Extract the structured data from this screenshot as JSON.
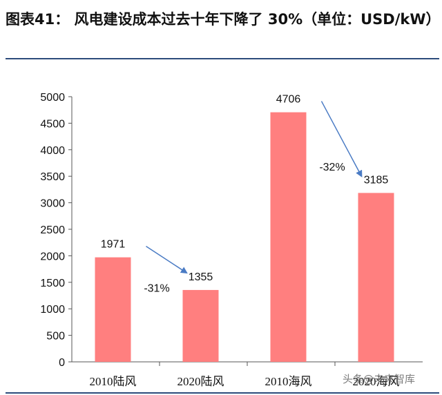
{
  "title": "图表41：  风电建设成本过去十年下降了 30%（单位：USD/kW）",
  "watermark": "头条@未来智库",
  "colors": {
    "bar": "#ff7f7f",
    "arrow": "#4a7bc4",
    "rule": "#2b4a7a"
  },
  "chart_data": {
    "type": "bar",
    "categories": [
      "2010陆风",
      "2020陆风",
      "2010海风",
      "2020海风"
    ],
    "values": [
      1971,
      1355,
      4706,
      3185
    ],
    "ylim": [
      0,
      5000
    ],
    "yticks": [
      0,
      500,
      1000,
      1500,
      2000,
      2500,
      3000,
      3500,
      4000,
      4500,
      5000
    ],
    "grid": false,
    "annotations": [
      {
        "text": "-31%",
        "from": 0,
        "to": 1
      },
      {
        "text": "-32%",
        "from": 2,
        "to": 3
      }
    ]
  }
}
